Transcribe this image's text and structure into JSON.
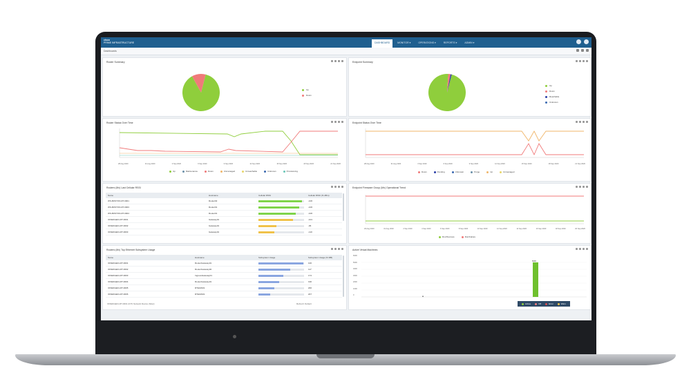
{
  "app": {
    "brand_top": "cisco",
    "brand_name": "PRIME INFRASTRUCTURE"
  },
  "topnav": {
    "tabs": [
      {
        "label": "DASHBOARD",
        "active": true
      },
      {
        "label": "MONITOR ▾",
        "active": false
      },
      {
        "label": "OPERATIONS ▾",
        "active": false
      },
      {
        "label": "REPORTS ▾",
        "active": false
      },
      {
        "label": "ADMIN ▾",
        "active": false
      }
    ]
  },
  "subbar": {
    "label": "Dashboards"
  },
  "panels": {
    "router_summary": {
      "title": "Router Summary",
      "legend": [
        {
          "label": "Up",
          "color": "#8fce3c"
        },
        {
          "label": "Down",
          "color": "#f07a7a"
        }
      ],
      "pie": [
        {
          "label": "Up",
          "value": 88,
          "color": "#8fce3c"
        },
        {
          "label": "Down",
          "value": 12,
          "color": "#f07a7a"
        }
      ]
    },
    "endpoint_summary": {
      "title": "Endpoint Summary",
      "legend": [
        {
          "label": "Up",
          "color": "#8fce3c"
        },
        {
          "label": "Down",
          "color": "#f07a7a"
        },
        {
          "label": "Reachable",
          "color": "#2b3fa8"
        },
        {
          "label": "Unknown",
          "color": "#3b6ab1"
        }
      ],
      "pie": [
        {
          "label": "Up",
          "value": 97,
          "color": "#8fce3c"
        },
        {
          "label": "Down",
          "value": 2,
          "color": "#f07a7a"
        },
        {
          "label": "Reachable",
          "value": 1,
          "color": "#2b3fa8"
        }
      ]
    },
    "router_status": {
      "title": "Router Status Over Time",
      "x_labels": [
        "28 Aug 2020",
        "31 Aug 2020",
        "3 Sep 2020",
        "6 Sep 2020",
        "9 Sep 2020",
        "12 Sep 2020",
        "15 Sep 2020",
        "18 Sep 2020",
        "21 Sep 2020"
      ],
      "legend": [
        {
          "label": "Up",
          "color": "#8fce3c"
        },
        {
          "label": "Maintenance",
          "color": "#6a8fa8"
        },
        {
          "label": "Down",
          "color": "#f07a7a"
        },
        {
          "label": "Unmanaged",
          "color": "#f0b66a"
        },
        {
          "label": "Unreachable",
          "color": "#e8d66a"
        },
        {
          "label": "Unknown",
          "color": "#3b6ab1"
        },
        {
          "label": "Provisioning",
          "color": "#6ac7b8"
        }
      ]
    },
    "endpoint_status": {
      "title": "Endpoint Status Over Time",
      "x_labels": [
        "28 Aug 2020",
        "31 Aug 2020",
        "3 Sep 2020",
        "6 Sep 2020",
        "9 Sep 2020",
        "12 Sep 2020",
        "15 Sep 2020",
        "18 Sep 2020",
        "21 Sep 2020"
      ],
      "legend": [
        {
          "label": "Down",
          "color": "#f07a7a"
        },
        {
          "label": "Pending",
          "color": "#2b3fa8"
        },
        {
          "label": "Unknown",
          "color": "#3b6ab1"
        },
        {
          "label": "Purge",
          "color": "#6a8fa8"
        },
        {
          "label": "Up",
          "color": "#f0b66a"
        },
        {
          "label": "Unmanaged",
          "color": "#e8d66a"
        }
      ]
    },
    "top_routers_cpu": {
      "title": "Routers (Mx) Last Cellular RSSI",
      "columns": [
        "Name",
        "Hostname",
        "Cellular RSSI",
        "Cellular RSSI (% dBm)"
      ],
      "rows": [
        {
          "name": "WS-BOSTON-RT-0001",
          "host": "Router02",
          "bar": 0.95,
          "bar_color": "#7fd44a",
          "val": "-106"
        },
        {
          "name": "WS-BOSTON-RT-0003",
          "host": "Router01",
          "bar": 0.9,
          "bar_color": "#7fd44a",
          "val": "-106"
        },
        {
          "name": "WS-BOSTON-RT-0004",
          "host": "Router01",
          "bar": 0.82,
          "bar_color": "#7fd44a",
          "val": "-106"
        },
        {
          "name": "IOXEDGE01-RT-0001",
          "host": "Gateway01",
          "bar": 0.75,
          "bar_color": "#f0c24a",
          "val": "-101"
        },
        {
          "name": "IOXEDGE01-RT-0002",
          "host": "Gateway01",
          "bar": 0.4,
          "bar_color": "#f0c24a",
          "val": "-96"
        },
        {
          "name": "IOXEDGE01-RT-0003",
          "host": "Gateway01",
          "bar": 0.35,
          "bar_color": "#f0c24a",
          "val": "-110"
        }
      ]
    },
    "endpoint_firmware": {
      "title": "Endpoint Firmware Group (Mx) Operational Trend",
      "x_labels": [
        "29 Aug 2020",
        "31 Aug 2020",
        "2 Sep 2020",
        "4 Sep 2020",
        "6 Sep 2020",
        "8 Sep 2020",
        "10 Sep 2020",
        "12 Sep 2020",
        "14 Sep 2020",
        "16 Sep 2020",
        "18 Sep 2020",
        "20 Sep 2020"
      ],
      "legend": [
        {
          "label": "Run/Success",
          "color": "#8fce3c"
        },
        {
          "label": "Run/Failure",
          "color": "#f07a7a"
        }
      ]
    },
    "top_routers_mem": {
      "title": "Routers (Mx) Top Ethernet Subsystem Usage",
      "columns": [
        "Name",
        "Hostname",
        "Subsystem Usage",
        "Subsystem Usage (% MB)"
      ],
      "rows": [
        {
          "name": "IOXEDGE01-RT-0001",
          "host": "RouterGateway01",
          "bar": 0.98,
          "val": "100"
        },
        {
          "name": "IOXEDGE01-RT-0002",
          "host": "RouterGateway02",
          "bar": 0.7,
          "val": "117"
        },
        {
          "name": "IOXEDGE01-RT-0003",
          "host": "IngressGateway01",
          "bar": 0.55,
          "val": "174"
        },
        {
          "name": "IOXEDGE01-RT-0004",
          "host": "RouterGateway01",
          "bar": 0.45,
          "val": "196"
        },
        {
          "name": "IOXEDGE01-RT-0005",
          "host": "RTEGW01",
          "bar": 0.35,
          "val": "200"
        },
        {
          "name": "IOXEDGE01-RT-0006",
          "host": "RTEGW01",
          "bar": 0.25,
          "val": "207"
        }
      ],
      "footer_left": "IOXEDGE01-RT-0001 (IOT) Network Device (Slow)",
      "footer_right": "Refresh: Default"
    },
    "active_vms": {
      "title": "Active Virtual Machines",
      "y_labels": [
        "6000",
        "5000",
        "4000",
        "3000",
        "2000",
        "1000",
        "0"
      ],
      "bar_label": "5000",
      "legend": [
        {
          "label": "Active",
          "color": "#8fce3c"
        },
        {
          "label": "Off",
          "color": "#f07a7a"
        },
        {
          "label": "Error",
          "color": "#d94c4c"
        },
        {
          "label": "Warn",
          "color": "#f0c24a"
        }
      ]
    }
  }
}
